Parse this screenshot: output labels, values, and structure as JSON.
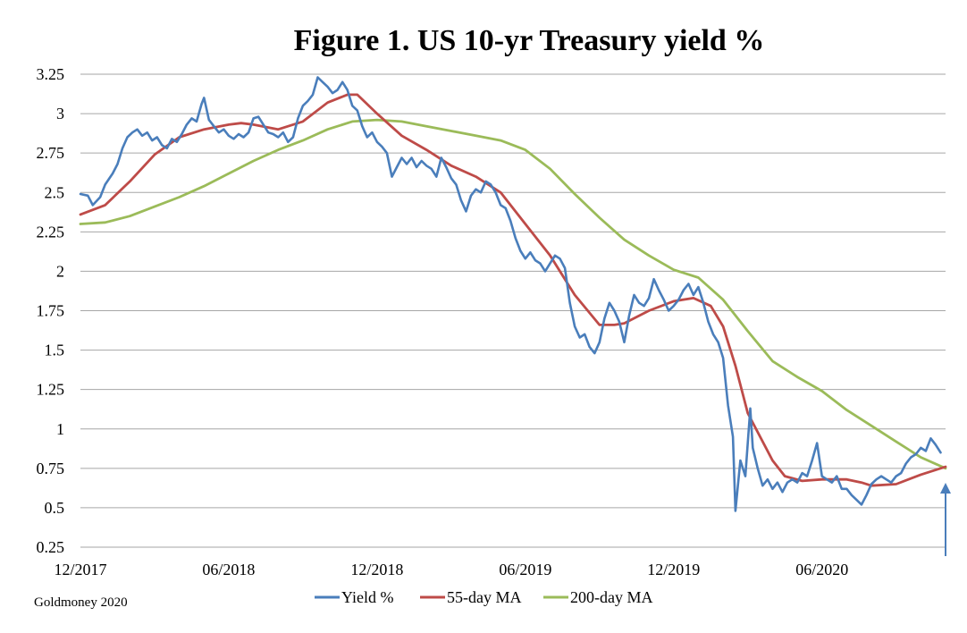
{
  "chart_data": {
    "type": "line",
    "title": "Figure 1. US 10-yr Treasury yield %",
    "source": "Goldmoney 2020",
    "xlabel": "",
    "ylabel": "",
    "ylim": [
      0.25,
      3.25
    ],
    "yticks": [
      "3.25",
      "3",
      "2.75",
      "2.5",
      "2.25",
      "2",
      "1.75",
      "1.5",
      "1.25",
      "1",
      "0.75",
      "0.5",
      "0.25"
    ],
    "ytick_values": [
      3.25,
      3,
      2.75,
      2.5,
      2.25,
      2,
      1.75,
      1.5,
      1.25,
      1,
      0.75,
      0.5,
      0.25
    ],
    "xlim": [
      0,
      35
    ],
    "xticks": [
      {
        "label": "12/2017",
        "t": 0
      },
      {
        "label": "06/2018",
        "t": 6
      },
      {
        "label": "12/2018",
        "t": 12
      },
      {
        "label": "06/2019",
        "t": 18
      },
      {
        "label": "12/2019",
        "t": 24
      },
      {
        "label": "06/2020",
        "t": 30
      }
    ],
    "x_unit": "months since Dec 2017",
    "grid": true,
    "legend_position": "bottom-center",
    "series": [
      {
        "name": "Yield %",
        "color": "#4a7ebb",
        "points": [
          [
            0,
            2.49
          ],
          [
            0.3,
            2.48
          ],
          [
            0.5,
            2.42
          ],
          [
            0.8,
            2.47
          ],
          [
            1,
            2.55
          ],
          [
            1.3,
            2.62
          ],
          [
            1.5,
            2.68
          ],
          [
            1.7,
            2.78
          ],
          [
            1.9,
            2.85
          ],
          [
            2.1,
            2.88
          ],
          [
            2.3,
            2.9
          ],
          [
            2.5,
            2.86
          ],
          [
            2.7,
            2.88
          ],
          [
            2.9,
            2.83
          ],
          [
            3.1,
            2.85
          ],
          [
            3.3,
            2.8
          ],
          [
            3.5,
            2.78
          ],
          [
            3.7,
            2.84
          ],
          [
            3.9,
            2.82
          ],
          [
            4.1,
            2.87
          ],
          [
            4.3,
            2.93
          ],
          [
            4.5,
            2.97
          ],
          [
            4.7,
            2.95
          ],
          [
            4.9,
            3.06
          ],
          [
            5.0,
            3.1
          ],
          [
            5.2,
            2.96
          ],
          [
            5.4,
            2.92
          ],
          [
            5.6,
            2.88
          ],
          [
            5.8,
            2.9
          ],
          [
            6.0,
            2.86
          ],
          [
            6.2,
            2.84
          ],
          [
            6.4,
            2.87
          ],
          [
            6.6,
            2.85
          ],
          [
            6.8,
            2.88
          ],
          [
            7.0,
            2.97
          ],
          [
            7.2,
            2.98
          ],
          [
            7.4,
            2.93
          ],
          [
            7.6,
            2.88
          ],
          [
            7.8,
            2.87
          ],
          [
            8.0,
            2.85
          ],
          [
            8.2,
            2.88
          ],
          [
            8.4,
            2.82
          ],
          [
            8.6,
            2.85
          ],
          [
            8.8,
            2.97
          ],
          [
            9.0,
            3.05
          ],
          [
            9.2,
            3.08
          ],
          [
            9.4,
            3.12
          ],
          [
            9.6,
            3.23
          ],
          [
            9.8,
            3.2
          ],
          [
            10.0,
            3.17
          ],
          [
            10.2,
            3.13
          ],
          [
            10.4,
            3.15
          ],
          [
            10.6,
            3.2
          ],
          [
            10.8,
            3.15
          ],
          [
            11.0,
            3.05
          ],
          [
            11.2,
            3.02
          ],
          [
            11.4,
            2.92
          ],
          [
            11.6,
            2.85
          ],
          [
            11.8,
            2.88
          ],
          [
            12.0,
            2.82
          ],
          [
            12.2,
            2.79
          ],
          [
            12.4,
            2.75
          ],
          [
            12.6,
            2.6
          ],
          [
            12.8,
            2.66
          ],
          [
            13.0,
            2.72
          ],
          [
            13.2,
            2.68
          ],
          [
            13.4,
            2.72
          ],
          [
            13.6,
            2.66
          ],
          [
            13.8,
            2.7
          ],
          [
            14.0,
            2.67
          ],
          [
            14.2,
            2.65
          ],
          [
            14.4,
            2.6
          ],
          [
            14.6,
            2.72
          ],
          [
            14.8,
            2.66
          ],
          [
            15.0,
            2.59
          ],
          [
            15.2,
            2.55
          ],
          [
            15.4,
            2.45
          ],
          [
            15.6,
            2.38
          ],
          [
            15.8,
            2.48
          ],
          [
            16.0,
            2.52
          ],
          [
            16.2,
            2.5
          ],
          [
            16.4,
            2.57
          ],
          [
            16.6,
            2.55
          ],
          [
            16.8,
            2.5
          ],
          [
            17.0,
            2.42
          ],
          [
            17.2,
            2.4
          ],
          [
            17.4,
            2.32
          ],
          [
            17.6,
            2.21
          ],
          [
            17.8,
            2.13
          ],
          [
            18.0,
            2.08
          ],
          [
            18.2,
            2.12
          ],
          [
            18.4,
            2.07
          ],
          [
            18.6,
            2.05
          ],
          [
            18.8,
            2.0
          ],
          [
            19.0,
            2.05
          ],
          [
            19.2,
            2.1
          ],
          [
            19.4,
            2.08
          ],
          [
            19.6,
            2.02
          ],
          [
            19.8,
            1.8
          ],
          [
            20.0,
            1.65
          ],
          [
            20.2,
            1.58
          ],
          [
            20.4,
            1.6
          ],
          [
            20.6,
            1.52
          ],
          [
            20.8,
            1.48
          ],
          [
            21.0,
            1.55
          ],
          [
            21.2,
            1.7
          ],
          [
            21.4,
            1.8
          ],
          [
            21.6,
            1.75
          ],
          [
            21.8,
            1.68
          ],
          [
            22.0,
            1.55
          ],
          [
            22.2,
            1.72
          ],
          [
            22.4,
            1.85
          ],
          [
            22.6,
            1.8
          ],
          [
            22.8,
            1.78
          ],
          [
            23.0,
            1.83
          ],
          [
            23.2,
            1.95
          ],
          [
            23.4,
            1.88
          ],
          [
            23.6,
            1.82
          ],
          [
            23.8,
            1.75
          ],
          [
            24.0,
            1.78
          ],
          [
            24.2,
            1.82
          ],
          [
            24.4,
            1.88
          ],
          [
            24.6,
            1.92
          ],
          [
            24.8,
            1.85
          ],
          [
            25.0,
            1.9
          ],
          [
            25.2,
            1.8
          ],
          [
            25.4,
            1.68
          ],
          [
            25.6,
            1.6
          ],
          [
            25.8,
            1.55
          ],
          [
            26.0,
            1.45
          ],
          [
            26.2,
            1.15
          ],
          [
            26.4,
            0.95
          ],
          [
            26.5,
            0.48
          ],
          [
            26.7,
            0.8
          ],
          [
            26.9,
            0.7
          ],
          [
            27.1,
            1.13
          ],
          [
            27.2,
            0.88
          ],
          [
            27.4,
            0.75
          ],
          [
            27.6,
            0.64
          ],
          [
            27.8,
            0.68
          ],
          [
            28.0,
            0.62
          ],
          [
            28.2,
            0.66
          ],
          [
            28.4,
            0.6
          ],
          [
            28.6,
            0.66
          ],
          [
            28.8,
            0.68
          ],
          [
            29.0,
            0.66
          ],
          [
            29.2,
            0.72
          ],
          [
            29.4,
            0.7
          ],
          [
            29.6,
            0.8
          ],
          [
            29.8,
            0.91
          ],
          [
            30.0,
            0.7
          ],
          [
            30.2,
            0.68
          ],
          [
            30.4,
            0.66
          ],
          [
            30.6,
            0.7
          ],
          [
            30.8,
            0.62
          ],
          [
            31.0,
            0.62
          ],
          [
            31.2,
            0.58
          ],
          [
            31.4,
            0.55
          ],
          [
            31.6,
            0.52
          ],
          [
            31.8,
            0.58
          ],
          [
            32.0,
            0.65
          ],
          [
            32.2,
            0.68
          ],
          [
            32.4,
            0.7
          ],
          [
            32.6,
            0.68
          ],
          [
            32.8,
            0.66
          ],
          [
            33.0,
            0.7
          ],
          [
            33.2,
            0.72
          ],
          [
            33.4,
            0.78
          ],
          [
            33.6,
            0.82
          ],
          [
            33.8,
            0.84
          ],
          [
            34.0,
            0.88
          ],
          [
            34.2,
            0.86
          ],
          [
            34.4,
            0.94
          ],
          [
            34.6,
            0.9
          ],
          [
            34.8,
            0.85
          ]
        ]
      },
      {
        "name": "55-day MA",
        "color": "#be4b48",
        "points": [
          [
            0,
            2.36
          ],
          [
            1,
            2.42
          ],
          [
            2,
            2.57
          ],
          [
            3,
            2.74
          ],
          [
            4,
            2.85
          ],
          [
            5,
            2.9
          ],
          [
            6,
            2.93
          ],
          [
            6.5,
            2.94
          ],
          [
            7,
            2.93
          ],
          [
            8,
            2.9
          ],
          [
            9,
            2.95
          ],
          [
            10,
            3.07
          ],
          [
            10.8,
            3.12
          ],
          [
            11.2,
            3.12
          ],
          [
            12,
            3.0
          ],
          [
            13,
            2.86
          ],
          [
            14,
            2.77
          ],
          [
            15,
            2.67
          ],
          [
            16,
            2.6
          ],
          [
            17,
            2.5
          ],
          [
            18,
            2.3
          ],
          [
            19,
            2.1
          ],
          [
            20,
            1.85
          ],
          [
            21,
            1.66
          ],
          [
            21.6,
            1.66
          ],
          [
            22,
            1.67
          ],
          [
            23,
            1.75
          ],
          [
            24,
            1.81
          ],
          [
            24.8,
            1.83
          ],
          [
            25.5,
            1.78
          ],
          [
            26,
            1.65
          ],
          [
            26.5,
            1.4
          ],
          [
            27,
            1.1
          ],
          [
            28,
            0.8
          ],
          [
            28.5,
            0.7
          ],
          [
            29.2,
            0.67
          ],
          [
            30,
            0.68
          ],
          [
            31,
            0.68
          ],
          [
            31.6,
            0.66
          ],
          [
            32,
            0.64
          ],
          [
            33,
            0.65
          ],
          [
            34,
            0.71
          ],
          [
            35,
            0.76
          ]
        ]
      },
      {
        "name": "200-day MA",
        "color": "#9bbb59",
        "points": [
          [
            0,
            2.3
          ],
          [
            1,
            2.31
          ],
          [
            2,
            2.35
          ],
          [
            3,
            2.41
          ],
          [
            4,
            2.47
          ],
          [
            5,
            2.54
          ],
          [
            6,
            2.62
          ],
          [
            7,
            2.7
          ],
          [
            8,
            2.77
          ],
          [
            9,
            2.83
          ],
          [
            10,
            2.9
          ],
          [
            11,
            2.95
          ],
          [
            12,
            2.96
          ],
          [
            13,
            2.95
          ],
          [
            14,
            2.92
          ],
          [
            15,
            2.89
          ],
          [
            16,
            2.86
          ],
          [
            17,
            2.83
          ],
          [
            18,
            2.77
          ],
          [
            19,
            2.65
          ],
          [
            20,
            2.49
          ],
          [
            21,
            2.34
          ],
          [
            22,
            2.2
          ],
          [
            23,
            2.1
          ],
          [
            24,
            2.01
          ],
          [
            25,
            1.96
          ],
          [
            26,
            1.82
          ],
          [
            27,
            1.62
          ],
          [
            28,
            1.43
          ],
          [
            29,
            1.33
          ],
          [
            30,
            1.24
          ],
          [
            31,
            1.12
          ],
          [
            32,
            1.02
          ],
          [
            33,
            0.92
          ],
          [
            34,
            0.82
          ],
          [
            35,
            0.75
          ]
        ]
      }
    ]
  }
}
